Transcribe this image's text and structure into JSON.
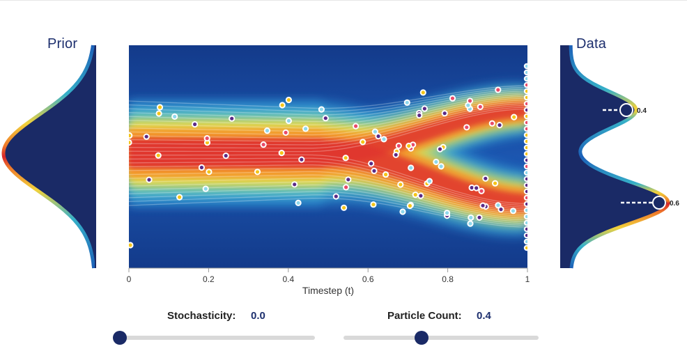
{
  "panels": {
    "prior_title": "Prior",
    "data_title": "Data",
    "data_peaks": [
      "0.4",
      "0.6"
    ]
  },
  "main_plot": {
    "xlabel": "Timestep (t)",
    "xticks": [
      "0",
      "0.2",
      "0.4",
      "0.6",
      "0.8",
      "1"
    ]
  },
  "controls": {
    "stochasticity": {
      "label": "Stochasticity:",
      "value": "0.0",
      "fraction": 0.0
    },
    "particle_count": {
      "label": "Particle Count:",
      "value": "0.4",
      "fraction": 0.4
    }
  },
  "colors": {
    "navy": "#1a2a66",
    "background": "#17459a",
    "particle_palette": [
      "#f5c518",
      "#e94b6a",
      "#5b2a86",
      "#8fd8ec"
    ]
  }
}
